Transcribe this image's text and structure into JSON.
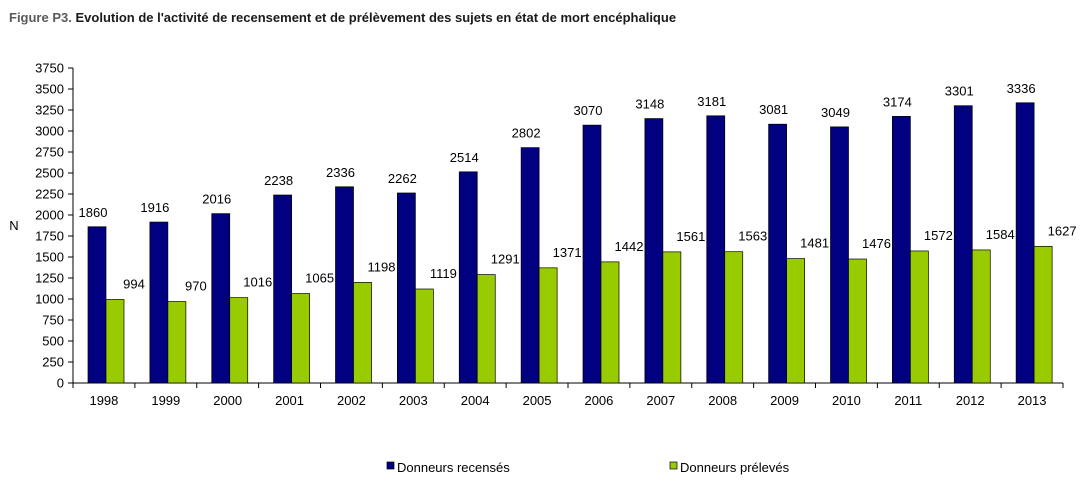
{
  "figure": {
    "prefix": "Figure P3.",
    "title": "Evolution de l'activité de recensement et de prélèvement des sujets en état de mort encéphalique"
  },
  "chart_data": {
    "type": "bar",
    "categories": [
      "1998",
      "1999",
      "2000",
      "2001",
      "2002",
      "2003",
      "2004",
      "2005",
      "2006",
      "2007",
      "2008",
      "2009",
      "2010",
      "2011",
      "2012",
      "2013"
    ],
    "series": [
      {
        "name": "Donneurs recensés",
        "color": "#000080",
        "values": [
          1860,
          1916,
          2016,
          2238,
          2336,
          2262,
          2514,
          2802,
          3070,
          3148,
          3181,
          3081,
          3049,
          3174,
          3301,
          3336
        ]
      },
      {
        "name": "Donneurs prélevés",
        "color": "#99CC00",
        "values": [
          994,
          970,
          1016,
          1065,
          1198,
          1119,
          1291,
          1371,
          1442,
          1561,
          1563,
          1481,
          1476,
          1572,
          1584,
          1627
        ]
      }
    ],
    "ylabel": "N",
    "xlabel": "",
    "ylim": [
      0,
      3750
    ],
    "yticks": [
      0,
      250,
      500,
      750,
      1000,
      1250,
      1500,
      1750,
      2000,
      2250,
      2500,
      2750,
      3000,
      3250,
      3500,
      3750
    ],
    "grid": false,
    "legend": "bottom"
  }
}
